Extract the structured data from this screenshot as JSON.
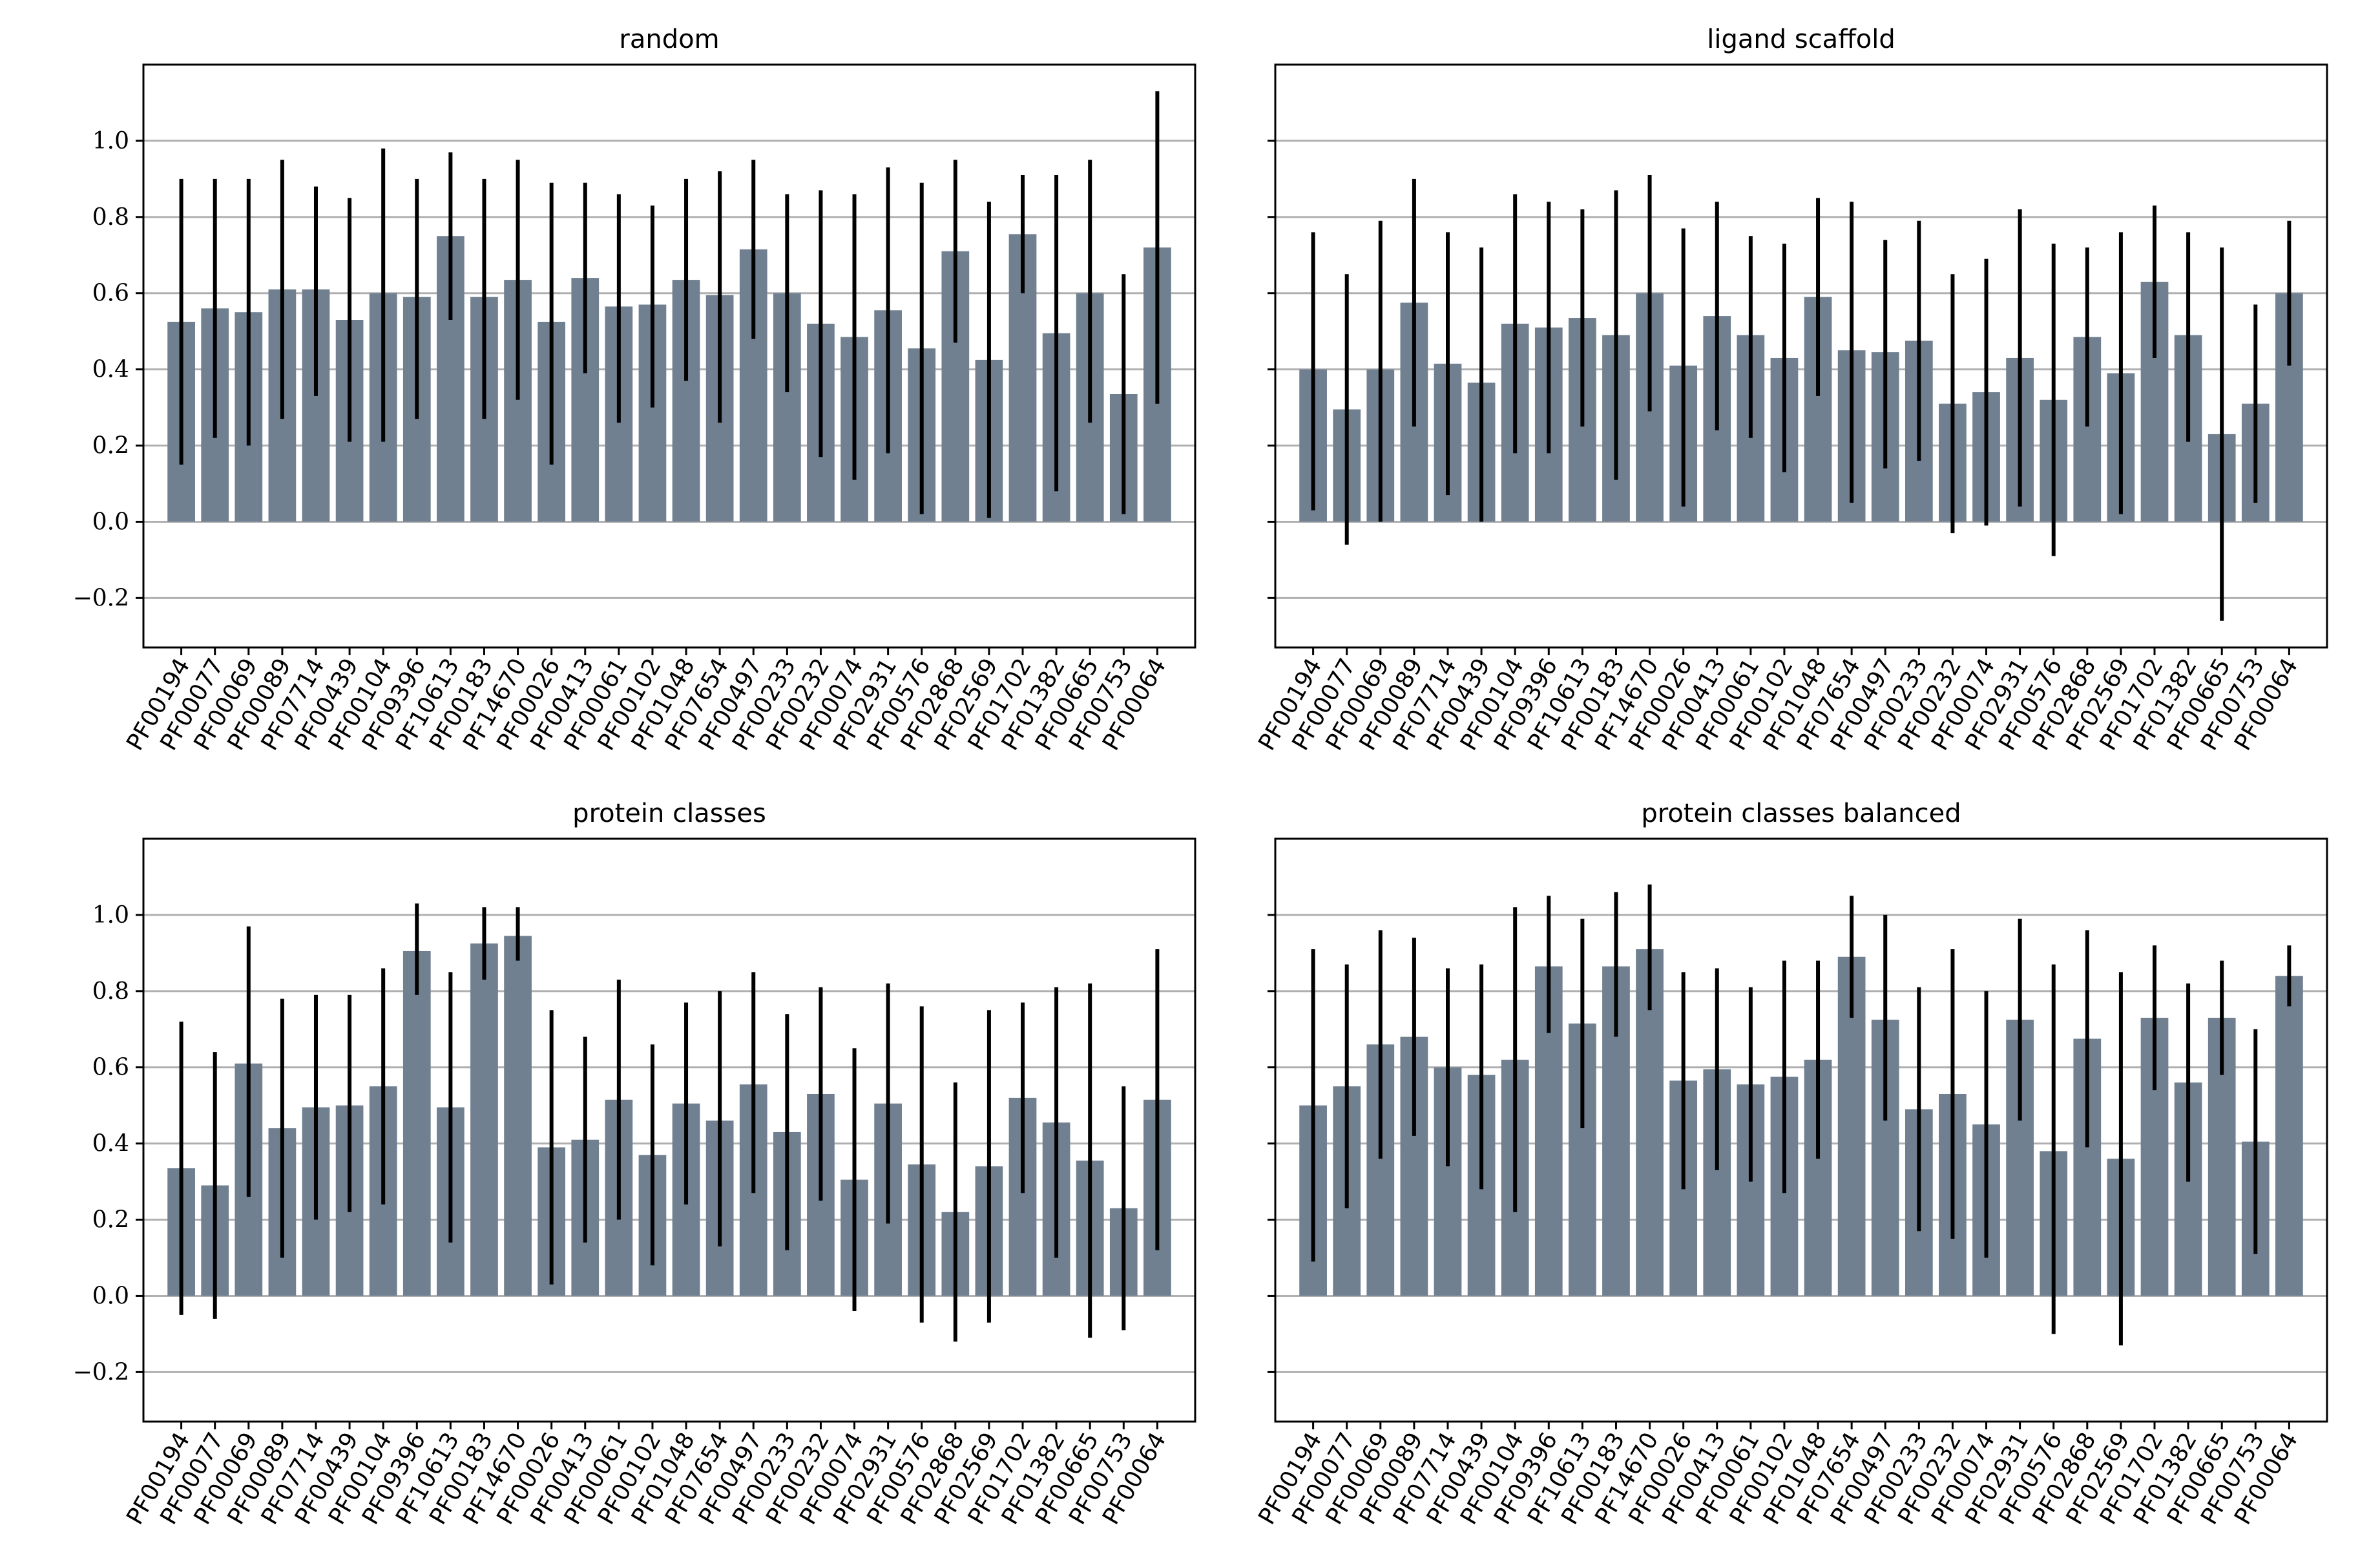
{
  "figure": {
    "background": "#ffffff",
    "bar_color": "#708090",
    "error_color": "#000000",
    "grid_color": "#b0b0b0"
  },
  "chart_data": [
    {
      "type": "bar",
      "title": "random",
      "xlabel": "",
      "ylabel": "",
      "ylim": [
        -0.33,
        1.2
      ],
      "yticks": [
        -0.2,
        0.0,
        0.2,
        0.4,
        0.6,
        0.8,
        1.0
      ],
      "ytick_labels": [
        "−0.2",
        "0.0",
        "0.2",
        "0.4",
        "0.6",
        "0.8",
        "1.0"
      ],
      "show_ytick_labels": true,
      "grid": "y",
      "categories": [
        "PF00194",
        "PF00077",
        "PF00069",
        "PF00089",
        "PF07714",
        "PF00439",
        "PF00104",
        "PF09396",
        "PF10613",
        "PF00183",
        "PF14670",
        "PF00026",
        "PF00413",
        "PF00061",
        "PF00102",
        "PF01048",
        "PF07654",
        "PF00497",
        "PF00233",
        "PF00232",
        "PF00074",
        "PF02931",
        "PF00576",
        "PF02868",
        "PF02569",
        "PF01702",
        "PF01382",
        "PF00665",
        "PF00753",
        "PF00064"
      ],
      "values": [
        0.525,
        0.56,
        0.55,
        0.61,
        0.61,
        0.53,
        0.6,
        0.59,
        0.75,
        0.59,
        0.635,
        0.525,
        0.64,
        0.565,
        0.57,
        0.635,
        0.595,
        0.715,
        0.6,
        0.52,
        0.485,
        0.555,
        0.455,
        0.71,
        0.425,
        0.755,
        0.495,
        0.6,
        0.335,
        0.72
      ],
      "error_low": [
        0.15,
        0.22,
        0.2,
        0.27,
        0.33,
        0.21,
        0.21,
        0.27,
        0.53,
        0.27,
        0.32,
        0.15,
        0.39,
        0.26,
        0.3,
        0.37,
        0.26,
        0.48,
        0.34,
        0.17,
        0.11,
        0.18,
        0.02,
        0.47,
        0.01,
        0.6,
        0.08,
        0.26,
        0.02,
        0.31
      ],
      "error_high": [
        0.9,
        0.9,
        0.9,
        0.95,
        0.88,
        0.85,
        0.98,
        0.9,
        0.97,
        0.9,
        0.95,
        0.89,
        0.89,
        0.86,
        0.83,
        0.9,
        0.92,
        0.95,
        0.86,
        0.87,
        0.86,
        0.93,
        0.89,
        0.95,
        0.84,
        0.91,
        0.91,
        0.95,
        0.65,
        1.13
      ]
    },
    {
      "type": "bar",
      "title": "ligand scaffold",
      "xlabel": "",
      "ylabel": "",
      "ylim": [
        -0.33,
        1.2
      ],
      "yticks": [
        -0.2,
        0.0,
        0.2,
        0.4,
        0.6,
        0.8,
        1.0
      ],
      "ytick_labels": [],
      "show_ytick_labels": false,
      "grid": "y",
      "categories": [
        "PF00194",
        "PF00077",
        "PF00069",
        "PF00089",
        "PF07714",
        "PF00439",
        "PF00104",
        "PF09396",
        "PF10613",
        "PF00183",
        "PF14670",
        "PF00026",
        "PF00413",
        "PF00061",
        "PF00102",
        "PF01048",
        "PF07654",
        "PF00497",
        "PF00233",
        "PF00232",
        "PF00074",
        "PF02931",
        "PF00576",
        "PF02868",
        "PF02569",
        "PF01702",
        "PF01382",
        "PF00665",
        "PF00753",
        "PF00064"
      ],
      "values": [
        0.4,
        0.295,
        0.4,
        0.575,
        0.415,
        0.365,
        0.52,
        0.51,
        0.535,
        0.49,
        0.6,
        0.41,
        0.54,
        0.49,
        0.43,
        0.59,
        0.45,
        0.445,
        0.475,
        0.31,
        0.34,
        0.43,
        0.32,
        0.485,
        0.39,
        0.63,
        0.49,
        0.23,
        0.31,
        0.6
      ],
      "error_low": [
        0.03,
        -0.06,
        0.0,
        0.25,
        0.07,
        0.0,
        0.18,
        0.18,
        0.25,
        0.11,
        0.29,
        0.04,
        0.24,
        0.22,
        0.13,
        0.33,
        0.05,
        0.14,
        0.16,
        -0.03,
        -0.01,
        0.04,
        -0.09,
        0.25,
        0.02,
        0.43,
        0.21,
        -0.26,
        0.05,
        0.41
      ],
      "error_high": [
        0.76,
        0.65,
        0.79,
        0.9,
        0.76,
        0.72,
        0.86,
        0.84,
        0.82,
        0.87,
        0.91,
        0.77,
        0.84,
        0.75,
        0.73,
        0.85,
        0.84,
        0.74,
        0.79,
        0.65,
        0.69,
        0.82,
        0.73,
        0.72,
        0.76,
        0.83,
        0.76,
        0.72,
        0.57,
        0.79
      ]
    },
    {
      "type": "bar",
      "title": "protein classes",
      "xlabel": "",
      "ylabel": "",
      "ylim": [
        -0.33,
        1.2
      ],
      "yticks": [
        -0.2,
        0.0,
        0.2,
        0.4,
        0.6,
        0.8,
        1.0
      ],
      "ytick_labels": [
        "−0.2",
        "0.0",
        "0.2",
        "0.4",
        "0.6",
        "0.8",
        "1.0"
      ],
      "show_ytick_labels": true,
      "grid": "y",
      "categories": [
        "PF00194",
        "PF00077",
        "PF00069",
        "PF00089",
        "PF07714",
        "PF00439",
        "PF00104",
        "PF09396",
        "PF10613",
        "PF00183",
        "PF14670",
        "PF00026",
        "PF00413",
        "PF00061",
        "PF00102",
        "PF01048",
        "PF07654",
        "PF00497",
        "PF00233",
        "PF00232",
        "PF00074",
        "PF02931",
        "PF00576",
        "PF02868",
        "PF02569",
        "PF01702",
        "PF01382",
        "PF00665",
        "PF00753",
        "PF00064"
      ],
      "values": [
        0.335,
        0.29,
        0.61,
        0.44,
        0.495,
        0.5,
        0.55,
        0.905,
        0.495,
        0.925,
        0.945,
        0.39,
        0.41,
        0.515,
        0.37,
        0.505,
        0.46,
        0.555,
        0.43,
        0.53,
        0.305,
        0.505,
        0.345,
        0.22,
        0.34,
        0.52,
        0.455,
        0.355,
        0.23,
        0.515
      ],
      "error_low": [
        -0.05,
        -0.06,
        0.26,
        0.1,
        0.2,
        0.22,
        0.24,
        0.79,
        0.14,
        0.83,
        0.88,
        0.03,
        0.14,
        0.2,
        0.08,
        0.24,
        0.13,
        0.27,
        0.12,
        0.25,
        -0.04,
        0.19,
        -0.07,
        -0.12,
        -0.07,
        0.27,
        0.1,
        -0.11,
        -0.09,
        0.12
      ],
      "error_high": [
        0.72,
        0.64,
        0.97,
        0.78,
        0.79,
        0.79,
        0.86,
        1.03,
        0.85,
        1.02,
        1.02,
        0.75,
        0.68,
        0.83,
        0.66,
        0.77,
        0.8,
        0.85,
        0.74,
        0.81,
        0.65,
        0.82,
        0.76,
        0.56,
        0.75,
        0.77,
        0.81,
        0.82,
        0.55,
        0.91
      ]
    },
    {
      "type": "bar",
      "title": "protein classes balanced",
      "xlabel": "",
      "ylabel": "",
      "ylim": [
        -0.33,
        1.2
      ],
      "yticks": [
        -0.2,
        0.0,
        0.2,
        0.4,
        0.6,
        0.8,
        1.0
      ],
      "ytick_labels": [],
      "show_ytick_labels": false,
      "grid": "y",
      "categories": [
        "PF00194",
        "PF00077",
        "PF00069",
        "PF00089",
        "PF07714",
        "PF00439",
        "PF00104",
        "PF09396",
        "PF10613",
        "PF00183",
        "PF14670",
        "PF00026",
        "PF00413",
        "PF00061",
        "PF00102",
        "PF01048",
        "PF07654",
        "PF00497",
        "PF00233",
        "PF00232",
        "PF00074",
        "PF02931",
        "PF00576",
        "PF02868",
        "PF02569",
        "PF01702",
        "PF01382",
        "PF00665",
        "PF00753",
        "PF00064"
      ],
      "values": [
        0.5,
        0.55,
        0.66,
        0.68,
        0.6,
        0.58,
        0.62,
        0.865,
        0.715,
        0.865,
        0.91,
        0.565,
        0.595,
        0.555,
        0.575,
        0.62,
        0.89,
        0.725,
        0.49,
        0.53,
        0.45,
        0.725,
        0.38,
        0.675,
        0.36,
        0.73,
        0.56,
        0.73,
        0.405,
        0.84
      ],
      "error_low": [
        0.09,
        0.23,
        0.36,
        0.42,
        0.34,
        0.28,
        0.22,
        0.69,
        0.44,
        0.68,
        0.75,
        0.28,
        0.33,
        0.3,
        0.27,
        0.36,
        0.73,
        0.46,
        0.17,
        0.15,
        0.1,
        0.46,
        -0.1,
        0.39,
        -0.13,
        0.54,
        0.3,
        0.58,
        0.11,
        0.76
      ],
      "error_high": [
        0.91,
        0.87,
        0.96,
        0.94,
        0.86,
        0.87,
        1.02,
        1.05,
        0.99,
        1.06,
        1.08,
        0.85,
        0.86,
        0.81,
        0.88,
        0.88,
        1.05,
        1.0,
        0.81,
        0.91,
        0.8,
        0.99,
        0.87,
        0.96,
        0.85,
        0.92,
        0.82,
        0.88,
        0.7,
        0.92
      ]
    }
  ]
}
